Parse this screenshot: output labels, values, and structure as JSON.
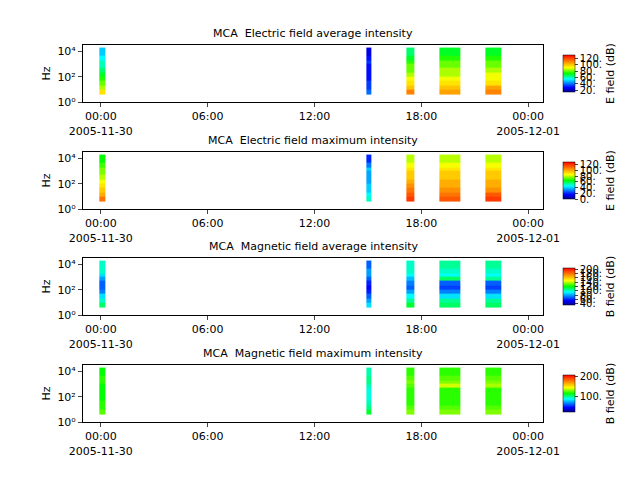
{
  "chart_data": [
    {
      "type": "heatmap",
      "title": "MCA  Electric field average intensity",
      "ylabel": "Hz",
      "colorbar_label": "E field (dB)",
      "log": "y",
      "xlim": [
        "2005-11-29 23:00",
        "2005-12-01 00:50"
      ],
      "xticks": [
        {
          "value": "2005-11-30 00:00",
          "label": "00:00\n2005-11-30"
        },
        {
          "value": "2005-11-30 06:00",
          "label": "06:00"
        },
        {
          "value": "2005-11-30 12:00",
          "label": "12:00"
        },
        {
          "value": "2005-11-30 18:00",
          "label": "18:00"
        },
        {
          "value": "2005-12-01 00:00",
          "label": "00:00\n2005-12-01"
        }
      ],
      "ylim": [
        1,
        32000
      ],
      "yticks": [
        {
          "value": 1,
          "label": "10⁰"
        },
        {
          "value": 100,
          "label": "10²"
        },
        {
          "value": 10000,
          "label": "10⁴"
        }
      ],
      "y_edges": [
        4,
        10,
        20,
        50,
        100,
        200,
        500,
        1000,
        2000,
        5000,
        20000
      ],
      "zlim": [
        15,
        130
      ],
      "zticks": [
        {
          "value": 20,
          "label": "20."
        },
        {
          "value": 40,
          "label": "40."
        },
        {
          "value": 60,
          "label": "60."
        },
        {
          "value": 80,
          "label": "80."
        },
        {
          "value": 100,
          "label": "100."
        },
        {
          "value": 120,
          "label": "120."
        }
      ],
      "segments": [
        {
          "start": "2005-11-29 23:55",
          "end": "2005-11-30 00:15",
          "values": [
            95,
            85,
            80,
            75,
            70,
            65,
            60,
            60,
            55,
            50
          ]
        },
        {
          "start": "2005-11-30 14:55",
          "end": "2005-11-30 15:10",
          "values": [
            40,
            35,
            35,
            30,
            30,
            30,
            30,
            35,
            30,
            25
          ]
        },
        {
          "start": "2005-11-30 17:10",
          "end": "2005-11-30 17:35",
          "values": [
            110,
            100,
            95,
            90,
            85,
            80,
            80,
            75,
            70,
            65
          ]
        },
        {
          "start": "2005-11-30 19:00",
          "end": "2005-11-30 20:10",
          "values": [
            105,
            100,
            95,
            90,
            85,
            85,
            80,
            80,
            75,
            70
          ]
        },
        {
          "start": "2005-11-30 21:35",
          "end": "2005-11-30 22:30",
          "values": [
            110,
            105,
            95,
            90,
            90,
            85,
            80,
            80,
            75,
            70
          ]
        }
      ]
    },
    {
      "type": "heatmap",
      "title": "MCA  Electric field maximum intensity",
      "ylabel": "Hz",
      "colorbar_label": "E field (dB)",
      "log": "y",
      "xlim": [
        "2005-11-29 23:00",
        "2005-12-01 00:50"
      ],
      "xticks": [
        {
          "value": "2005-11-30 00:00",
          "label": "00:00\n2005-11-30"
        },
        {
          "value": "2005-11-30 06:00",
          "label": "06:00"
        },
        {
          "value": "2005-11-30 12:00",
          "label": "12:00"
        },
        {
          "value": "2005-11-30 18:00",
          "label": "18:00"
        },
        {
          "value": "2005-12-01 00:00",
          "label": "00:00\n2005-12-01"
        }
      ],
      "ylim": [
        1,
        32000
      ],
      "yticks": [
        {
          "value": 1,
          "label": "10⁰"
        },
        {
          "value": 100,
          "label": "10²"
        },
        {
          "value": 10000,
          "label": "10⁴"
        }
      ],
      "y_edges": [
        4,
        10,
        20,
        50,
        100,
        200,
        500,
        1000,
        2000,
        5000,
        20000
      ],
      "zlim": [
        0,
        130
      ],
      "zticks": [
        {
          "value": 0,
          "label": "0."
        },
        {
          "value": 20,
          "label": "20."
        },
        {
          "value": 40,
          "label": "40."
        },
        {
          "value": 60,
          "label": "60."
        },
        {
          "value": 80,
          "label": "80."
        },
        {
          "value": 100,
          "label": "100."
        },
        {
          "value": 120,
          "label": "120."
        }
      ],
      "segments": [
        {
          "start": "2005-11-29 23:55",
          "end": "2005-11-30 00:15",
          "values": [
            110,
            100,
            95,
            90,
            85,
            80,
            75,
            75,
            70,
            65
          ]
        },
        {
          "start": "2005-11-30 14:55",
          "end": "2005-11-30 15:10",
          "values": [
            50,
            45,
            40,
            40,
            35,
            35,
            35,
            40,
            30,
            20
          ]
        },
        {
          "start": "2005-11-30 17:10",
          "end": "2005-11-30 17:35",
          "values": [
            120,
            115,
            110,
            105,
            100,
            95,
            95,
            90,
            85,
            80
          ]
        },
        {
          "start": "2005-11-30 19:00",
          "end": "2005-11-30 20:10",
          "values": [
            115,
            110,
            105,
            100,
            100,
            95,
            95,
            90,
            85,
            80
          ]
        },
        {
          "start": "2005-11-30 21:35",
          "end": "2005-11-30 22:30",
          "values": [
            120,
            115,
            105,
            100,
            100,
            95,
            95,
            90,
            85,
            80
          ]
        }
      ]
    },
    {
      "type": "heatmap",
      "title": "MCA  Magnetic field average intensity",
      "ylabel": "Hz",
      "colorbar_label": "B field (dB)",
      "log": "y",
      "xlim": [
        "2005-11-29 23:00",
        "2005-12-01 00:50"
      ],
      "xticks": [
        {
          "value": "2005-11-30 00:00",
          "label": "00:00\n2005-11-30"
        },
        {
          "value": "2005-11-30 06:00",
          "label": "06:00"
        },
        {
          "value": "2005-11-30 12:00",
          "label": "12:00"
        },
        {
          "value": "2005-11-30 18:00",
          "label": "18:00"
        },
        {
          "value": "2005-12-01 00:00",
          "label": "00:00\n2005-12-01"
        }
      ],
      "ylim": [
        1,
        32000
      ],
      "yticks": [
        {
          "value": 1,
          "label": "10⁰"
        },
        {
          "value": 100,
          "label": "10²"
        },
        {
          "value": 10000,
          "label": "10⁴"
        }
      ],
      "y_edges": [
        4,
        10,
        20,
        50,
        100,
        200,
        500,
        1000,
        2000,
        5000,
        20000
      ],
      "zlim": [
        35,
        205
      ],
      "zticks": [
        {
          "value": 40,
          "label": "40."
        },
        {
          "value": 60,
          "label": "60."
        },
        {
          "value": 80,
          "label": "80."
        },
        {
          "value": 100,
          "label": "100."
        },
        {
          "value": 120,
          "label": "120."
        },
        {
          "value": 140,
          "label": "140."
        },
        {
          "value": 160,
          "label": "160."
        },
        {
          "value": 180,
          "label": "180."
        },
        {
          "value": 200,
          "label": "200."
        }
      ],
      "segments": [
        {
          "start": "2005-11-29 23:55",
          "end": "2005-11-30 00:15",
          "values": [
            110,
            100,
            90,
            75,
            70,
            70,
            80,
            90,
            100,
            100
          ]
        },
        {
          "start": "2005-11-30 14:55",
          "end": "2005-11-30 15:10",
          "values": [
            90,
            80,
            70,
            60,
            55,
            60,
            70,
            80,
            80,
            70
          ]
        },
        {
          "start": "2005-11-30 17:10",
          "end": "2005-11-30 17:35",
          "values": [
            115,
            105,
            95,
            80,
            70,
            75,
            85,
            95,
            100,
            100
          ]
        },
        {
          "start": "2005-11-30 19:00",
          "end": "2005-11-30 20:10",
          "values": [
            110,
            105,
            90,
            75,
            65,
            70,
            110,
            95,
            100,
            105
          ]
        },
        {
          "start": "2005-11-30 21:35",
          "end": "2005-11-30 22:30",
          "values": [
            110,
            105,
            90,
            75,
            65,
            70,
            105,
            95,
            100,
            105
          ]
        }
      ]
    },
    {
      "type": "heatmap",
      "title": "MCA  Magnetic field maximum intensity",
      "ylabel": "Hz",
      "colorbar_label": "B field (dB)",
      "log": "y",
      "xlim": [
        "2005-11-29 23:00",
        "2005-12-01 00:50"
      ],
      "xticks": [
        {
          "value": "2005-11-30 00:00",
          "label": "00:00\n2005-11-30"
        },
        {
          "value": "2005-11-30 06:00",
          "label": "06:00"
        },
        {
          "value": "2005-11-30 12:00",
          "label": "12:00"
        },
        {
          "value": "2005-11-30 18:00",
          "label": "18:00"
        },
        {
          "value": "2005-12-01 00:00",
          "label": "00:00\n2005-12-01"
        }
      ],
      "ylim": [
        1,
        32000
      ],
      "yticks": [
        {
          "value": 1,
          "label": "10⁰"
        },
        {
          "value": 100,
          "label": "10²"
        },
        {
          "value": 10000,
          "label": "10⁴"
        }
      ],
      "y_edges": [
        4,
        10,
        20,
        50,
        100,
        200,
        500,
        1000,
        2000,
        5000,
        20000
      ],
      "zlim": [
        20,
        210
      ],
      "zticks": [
        {
          "value": 100,
          "label": "100."
        },
        {
          "value": 200,
          "label": "200."
        }
      ],
      "segments": [
        {
          "start": "2005-11-29 23:55",
          "end": "2005-11-30 00:15",
          "values": [
            125,
            120,
            120,
            115,
            115,
            115,
            115,
            120,
            120,
            115
          ]
        },
        {
          "start": "2005-11-30 14:55",
          "end": "2005-11-30 15:10",
          "values": [
            110,
            100,
            95,
            90,
            90,
            90,
            95,
            100,
            100,
            95
          ]
        },
        {
          "start": "2005-11-30 17:10",
          "end": "2005-11-30 17:35",
          "values": [
            130,
            125,
            120,
            120,
            120,
            120,
            125,
            130,
            125,
            120
          ]
        },
        {
          "start": "2005-11-30 19:00",
          "end": "2005-11-30 20:10",
          "values": [
            130,
            125,
            120,
            120,
            120,
            120,
            140,
            130,
            125,
            120
          ]
        },
        {
          "start": "2005-11-30 21:35",
          "end": "2005-11-30 22:30",
          "values": [
            130,
            125,
            120,
            120,
            120,
            120,
            135,
            130,
            125,
            120
          ]
        }
      ]
    }
  ]
}
